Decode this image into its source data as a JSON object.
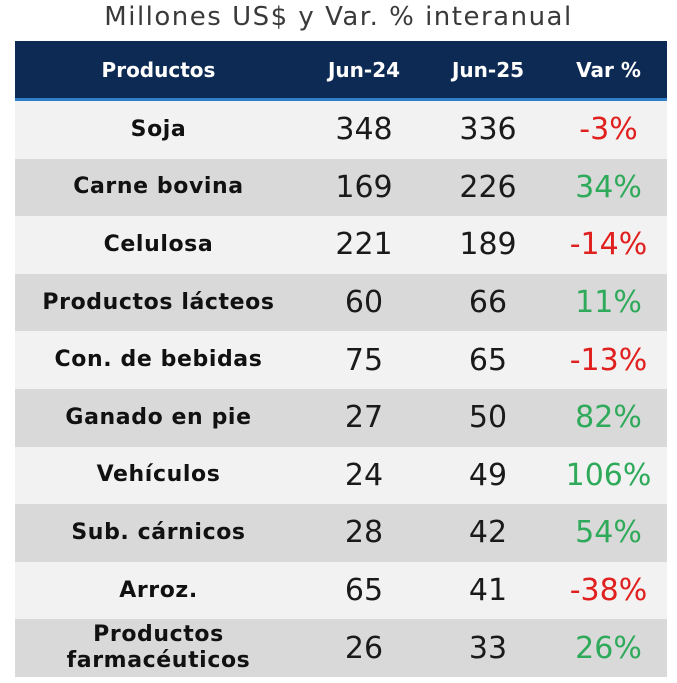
{
  "chart_data": {
    "type": "table",
    "title": "Millones US$ y Var. % interanual",
    "columns": [
      "Productos",
      "Jun-24",
      "Jun-25",
      "Var %"
    ],
    "rows": [
      {
        "producto": "Soja",
        "jun24": 348,
        "jun25": 336,
        "var": "-3%"
      },
      {
        "producto": "Carne bovina",
        "jun24": 169,
        "jun25": 226,
        "var": "34%"
      },
      {
        "producto": "Celulosa",
        "jun24": 221,
        "jun25": 189,
        "var": "-14%"
      },
      {
        "producto": "Productos lácteos",
        "jun24": 60,
        "jun25": 66,
        "var": "11%"
      },
      {
        "producto": "Con. de bebidas",
        "jun24": 75,
        "jun25": 65,
        "var": "-13%"
      },
      {
        "producto": "Ganado en pie",
        "jun24": 27,
        "jun25": 50,
        "var": "82%"
      },
      {
        "producto": "Vehículos",
        "jun24": 24,
        "jun25": 49,
        "var": "106%"
      },
      {
        "producto": "Sub. cárnicos",
        "jun24": 28,
        "jun25": 42,
        "var": "54%"
      },
      {
        "producto": "Arroz.",
        "jun24": 65,
        "jun25": 41,
        "var": "-38%"
      },
      {
        "producto": "Productos farmacéuticos",
        "jun24": 26,
        "jun25": 33,
        "var": "26%"
      }
    ]
  },
  "colors": {
    "header_bg": "#0d2a54",
    "header_border": "#2f80c8",
    "row_light": "#f2f2f2",
    "row_dark": "#d9d9d9",
    "negative": "#e0201e",
    "positive": "#2faa5a"
  }
}
